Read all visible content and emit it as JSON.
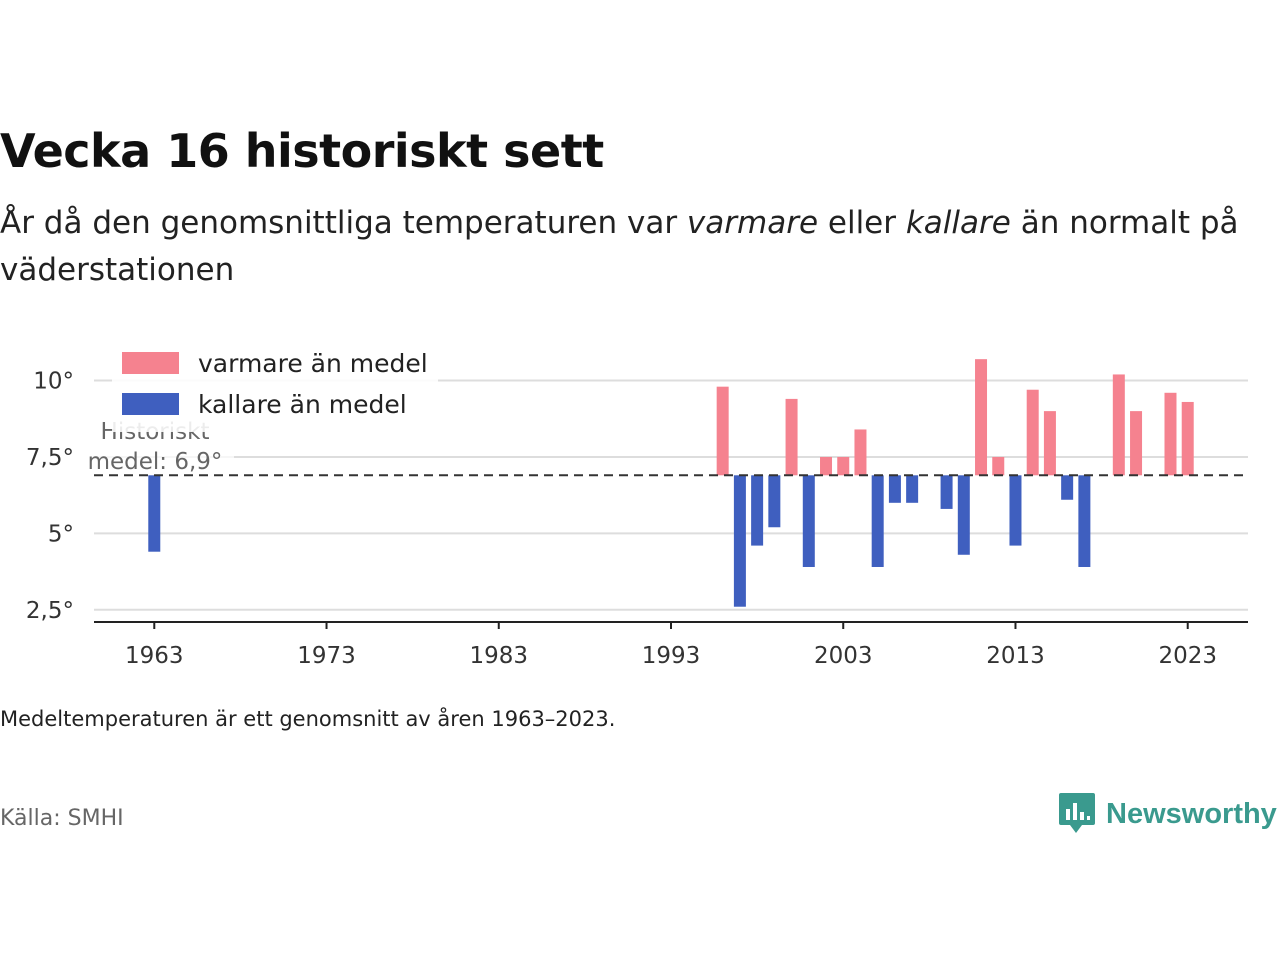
{
  "title": "Vecka 16 historiskt sett",
  "subtitle": {
    "part1": "År då den genomsnittliga temperaturen var ",
    "warm_word": "varmare",
    "part2": " eller ",
    "cold_word": "kallare",
    "part3": " än normalt på väderstationen"
  },
  "footnote": "Medeltemperaturen är ett genomsnitt av åren 1963–2023.",
  "source": "Källa: SMHI",
  "brand": {
    "name": "Newsworthy",
    "icon": "newsworthy-logo-icon",
    "color": "#3a9a8e"
  },
  "chart_data": {
    "type": "bar",
    "baseline": 6.9,
    "baseline_label_line1": "Historiskt",
    "baseline_label_line2": "medel: 6,9°",
    "ylim": [
      2.1,
      11
    ],
    "yticks": [
      2.5,
      5,
      7.5,
      10
    ],
    "ytick_labels": [
      "2,5°",
      "5°",
      "7,5°",
      "10°"
    ],
    "xlim": [
      1959.5,
      2026.5
    ],
    "xticks": [
      1963,
      1973,
      1983,
      1993,
      2003,
      2013,
      2023
    ],
    "xtick_labels": [
      "1963",
      "1973",
      "1983",
      "1993",
      "2003",
      "2013",
      "2023"
    ],
    "grid": true,
    "legend_position": "top-left",
    "colors": {
      "warm": "#f5828f",
      "cold": "#3f5fbf"
    },
    "series": [
      {
        "name": "varmare än medel",
        "key": "warm"
      },
      {
        "name": "kallare än medel",
        "key": "cold"
      }
    ],
    "years": [
      1963,
      1996,
      1997,
      1998,
      1999,
      2000,
      2001,
      2002,
      2003,
      2004,
      2005,
      2006,
      2007,
      2009,
      2010,
      2011,
      2012,
      2013,
      2014,
      2015,
      2016,
      2017,
      2019,
      2020,
      2022,
      2023
    ],
    "values": [
      4.4,
      9.8,
      2.6,
      4.6,
      5.2,
      9.4,
      3.9,
      7.5,
      7.5,
      8.4,
      3.9,
      6.0,
      6.0,
      5.8,
      4.3,
      10.7,
      7.5,
      4.6,
      9.7,
      9.0,
      6.1,
      3.9,
      10.2,
      9.0,
      9.6,
      9.3
    ]
  }
}
